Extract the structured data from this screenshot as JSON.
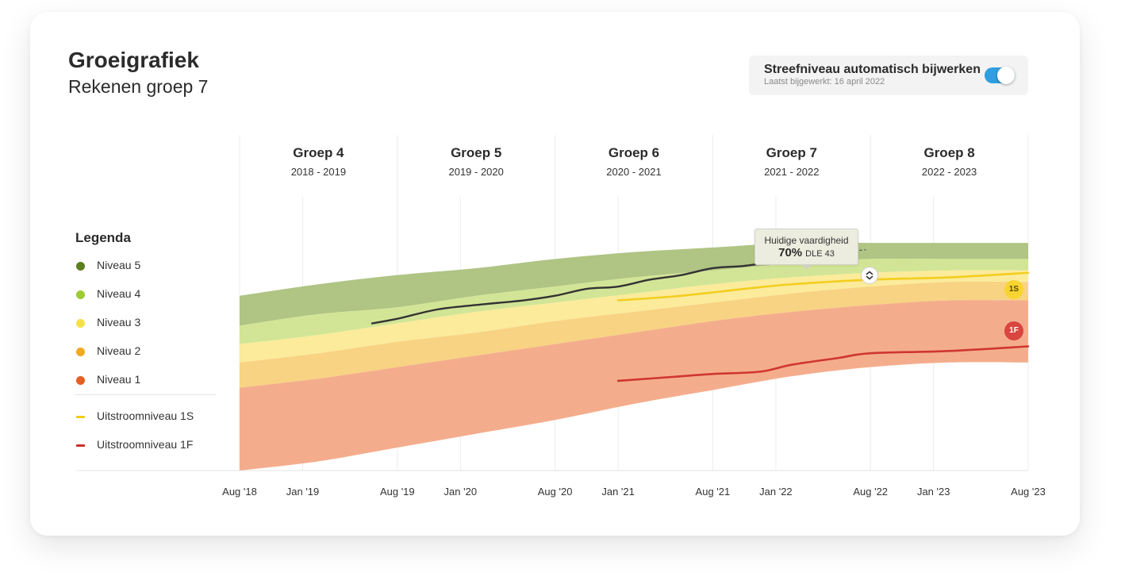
{
  "header": {
    "title": "Groeigrafiek",
    "subtitle": "Rekenen groep 7"
  },
  "settings": {
    "toggle_label": "Streefniveau automatisch bijwerken",
    "last_updated": "Laatst bijgewerkt: 16 april 2022",
    "toggle_on": true,
    "toggle_color": "#2f9fe0"
  },
  "legend": {
    "title": "Legenda",
    "levels": [
      {
        "label": "Niveau 5",
        "color": "#5e7f1e"
      },
      {
        "label": "Niveau 4",
        "color": "#9fcb33"
      },
      {
        "label": "Niveau 3",
        "color": "#f6e04a"
      },
      {
        "label": "Niveau 2",
        "color": "#f3a81f"
      },
      {
        "label": "Niveau 1",
        "color": "#e65f22"
      }
    ],
    "lines": [
      {
        "label": "Uitstroomniveau 1S",
        "color": "#f2cb18"
      },
      {
        "label": "Uitstroomniveau 1F",
        "color": "#cc2f2a"
      }
    ]
  },
  "tooltip": {
    "title": "Huidige vaardigheid",
    "value": "70%",
    "dle": "DLE 43"
  },
  "chart_data": {
    "type": "area",
    "groups": [
      {
        "name": "Groep 4",
        "years": "2018 - 2019"
      },
      {
        "name": "Groep 5",
        "years": "2019 - 2020"
      },
      {
        "name": "Groep 6",
        "years": "2020 - 2021"
      },
      {
        "name": "Groep 7",
        "years": "2021 - 2022"
      },
      {
        "name": "Groep 8",
        "years": "2022 - 2023"
      }
    ],
    "x_ticks": [
      "Aug '18",
      "Jan '19",
      "Aug '19",
      "Jan '20",
      "Aug '20",
      "Jan '21",
      "Aug '21",
      "Jan '22",
      "Aug '22",
      "Jan '23",
      "Aug '23"
    ],
    "bands": {
      "x": [
        0,
        0.5,
        1.0,
        1.5,
        2.0,
        2.5,
        3.0,
        3.5,
        4.0,
        4.5,
        5.0
      ],
      "colors": [
        "#b0c484",
        "#d2e596",
        "#fbeb9a",
        "#f8d383",
        "#f4ad8c"
      ],
      "boundaries": [
        [
          71,
          76,
          80,
          83,
          87,
          90,
          92,
          94,
          94,
          94,
          94
        ],
        [
          58,
          63,
          66,
          71,
          75,
          79,
          82,
          85,
          87,
          87,
          87
        ],
        [
          50,
          54,
          59,
          64,
          68,
          72,
          76,
          79,
          81,
          82,
          82
        ],
        [
          42,
          46,
          51,
          55,
          60,
          64,
          68,
          72,
          75,
          77,
          77
        ],
        [
          31,
          35,
          40,
          45,
          50,
          55,
          60,
          64,
          67,
          69,
          69
        ],
        [
          -5,
          -1,
          5,
          11,
          17,
          24,
          30,
          36,
          40,
          42,
          42
        ]
      ]
    },
    "series": [
      {
        "name": "Huidige vaardigheid",
        "color": "#333333",
        "x": [
          0.84,
          1.0,
          1.25,
          1.5,
          1.8,
          2.0,
          2.2,
          2.4,
          2.6,
          2.8,
          3.0,
          3.2,
          3.4,
          3.5,
          3.6
        ],
        "y": [
          59,
          61,
          65,
          67,
          69,
          71,
          74,
          75,
          78,
          80,
          83,
          84,
          86,
          86,
          89
        ]
      },
      {
        "name": "Uitstroomniveau 1S",
        "color": "#f2cb18",
        "x": [
          2.4,
          2.8,
          3.2,
          3.5,
          4.0,
          4.5,
          5.0
        ],
        "y": [
          69,
          71,
          74,
          76,
          78,
          79,
          81
        ]
      },
      {
        "name": "Uitstroomniveau 1F",
        "color": "#cc2f2a",
        "x": [
          2.4,
          2.8,
          3.0,
          3.3,
          3.5,
          3.8,
          4.0,
          4.5,
          5.0
        ],
        "y": [
          34,
          36,
          37,
          38,
          41,
          44,
          46,
          47,
          49
        ]
      }
    ],
    "current_point": {
      "x": 3.6,
      "y": 89
    },
    "projection": {
      "x": [
        3.6,
        3.97
      ],
      "y": [
        89,
        91
      ]
    },
    "ylim": [
      -5,
      103
    ],
    "xlim": [
      0,
      5
    ],
    "grid": true
  }
}
